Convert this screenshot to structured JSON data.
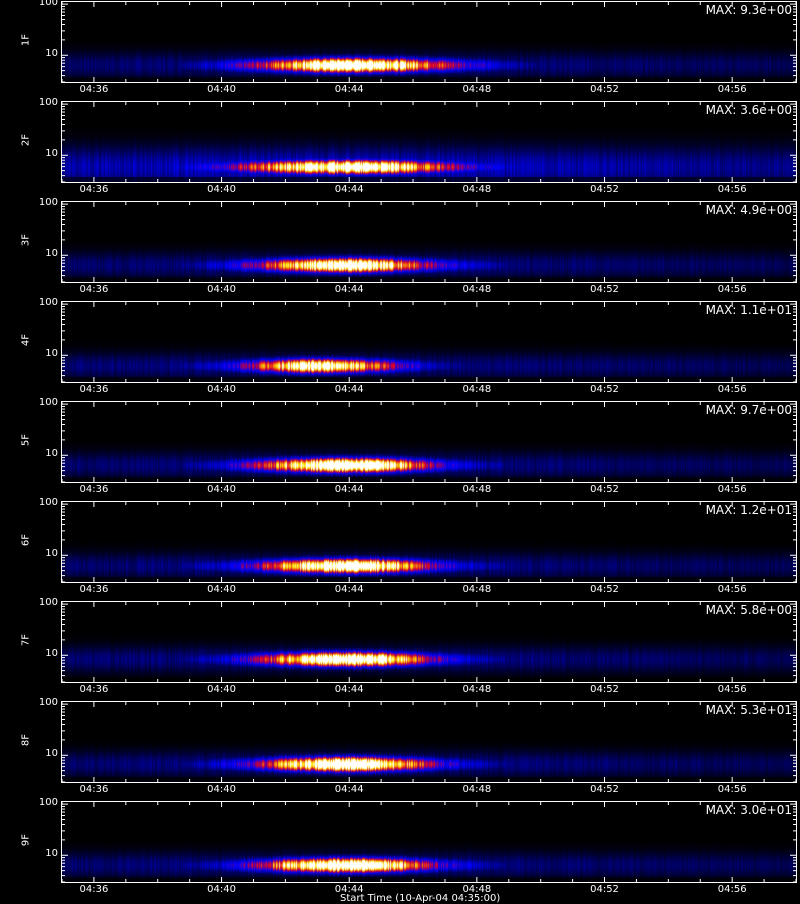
{
  "chart_data": {
    "type": "heatmap",
    "x_tick_labels": [
      "04:36",
      "04:40",
      "04:44",
      "04:48",
      "04:52",
      "04:56"
    ],
    "x_range": [
      "04:35",
      "04:58"
    ],
    "y_scale": "log",
    "y_range": [
      3,
      110
    ],
    "y_tick_labels": [
      "10",
      "100"
    ],
    "colormap": "black-blue-red-yellow-white",
    "panels": [
      {
        "label": "1F",
        "max": "MAX: 9.3e+00",
        "burst": {
          "start": "04:40",
          "peak": "04:44",
          "end": "04:48",
          "center_y": 6.5,
          "intensity": 0.95
        }
      },
      {
        "label": "2F",
        "max": "MAX: 3.6e+00",
        "burst": {
          "start": "04:39",
          "peak": "04:44",
          "end": "04:48",
          "center_y": 6.0,
          "intensity": 0.85
        }
      },
      {
        "label": "3F",
        "max": "MAX: 4.9e+00",
        "burst": {
          "start": "04:40",
          "peak": "04:44",
          "end": "04:47",
          "center_y": 6.5,
          "intensity": 0.9
        }
      },
      {
        "label": "4F",
        "max": "MAX: 1.1e+01",
        "burst": {
          "start": "04:40",
          "peak": "04:43",
          "end": "04:46",
          "center_y": 6.3,
          "intensity": 0.8
        }
      },
      {
        "label": "5F",
        "max": "MAX: 9.7e+00",
        "burst": {
          "start": "04:40",
          "peak": "04:44",
          "end": "04:47",
          "center_y": 6.5,
          "intensity": 1.0
        }
      },
      {
        "label": "6F",
        "max": "MAX: 1.2e+01",
        "burst": {
          "start": "04:40",
          "peak": "04:44",
          "end": "04:47",
          "center_y": 6.3,
          "intensity": 0.95
        }
      },
      {
        "label": "7F",
        "max": "MAX: 5.8e+00",
        "burst": {
          "start": "04:40",
          "peak": "04:44",
          "end": "04:47",
          "center_y": 8.5,
          "intensity": 0.95
        }
      },
      {
        "label": "8F",
        "max": "MAX: 5.3e+01",
        "burst": {
          "start": "04:40",
          "peak": "04:44",
          "end": "04:47",
          "center_y": 6.8,
          "intensity": 1.0
        }
      },
      {
        "label": "9F",
        "max": "MAX: 3.0e+01",
        "burst": {
          "start": "04:40",
          "peak": "04:44",
          "end": "04:47",
          "center_y": 6.5,
          "intensity": 1.0
        }
      }
    ],
    "x_title": "Start Time (10-Apr-04 04:35:00)"
  }
}
